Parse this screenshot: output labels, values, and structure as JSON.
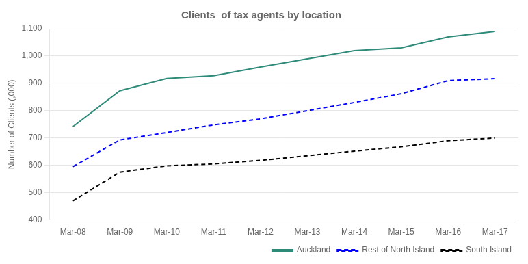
{
  "chart_data": {
    "type": "line",
    "title": "Clients  of tax agents by location",
    "y_label": "Number of Clients (,000)",
    "categories": [
      "Mar-08",
      "Mar-09",
      "Mar-10",
      "Mar-11",
      "Mar-12",
      "Mar-13",
      "Mar-14",
      "Mar-15",
      "Mar-16",
      "Mar-17"
    ],
    "series": [
      {
        "name": "Auckland",
        "color": "#2e8b7a",
        "line_style": "solid",
        "values": [
          742,
          873,
          918,
          928,
          960,
          990,
          1020,
          1030,
          1070,
          1090
        ]
      },
      {
        "name": "Rest of North Island",
        "color": "#0000ff",
        "line_style": "dashed",
        "values": [
          595,
          693,
          720,
          748,
          770,
          800,
          830,
          862,
          910,
          917
        ]
      },
      {
        "name": "South Island",
        "color": "#000000",
        "line_style": "dashed",
        "values": [
          470,
          575,
          598,
          605,
          618,
          635,
          652,
          668,
          690,
          700
        ]
      }
    ],
    "ylim": [
      400,
      1100
    ],
    "yticks": [
      400,
      500,
      600,
      700,
      800,
      900,
      {
        "value": 1000,
        "label": "1,000"
      },
      {
        "value": 1100,
        "label": "1,100"
      }
    ],
    "grid": true,
    "legend": "lower right"
  }
}
